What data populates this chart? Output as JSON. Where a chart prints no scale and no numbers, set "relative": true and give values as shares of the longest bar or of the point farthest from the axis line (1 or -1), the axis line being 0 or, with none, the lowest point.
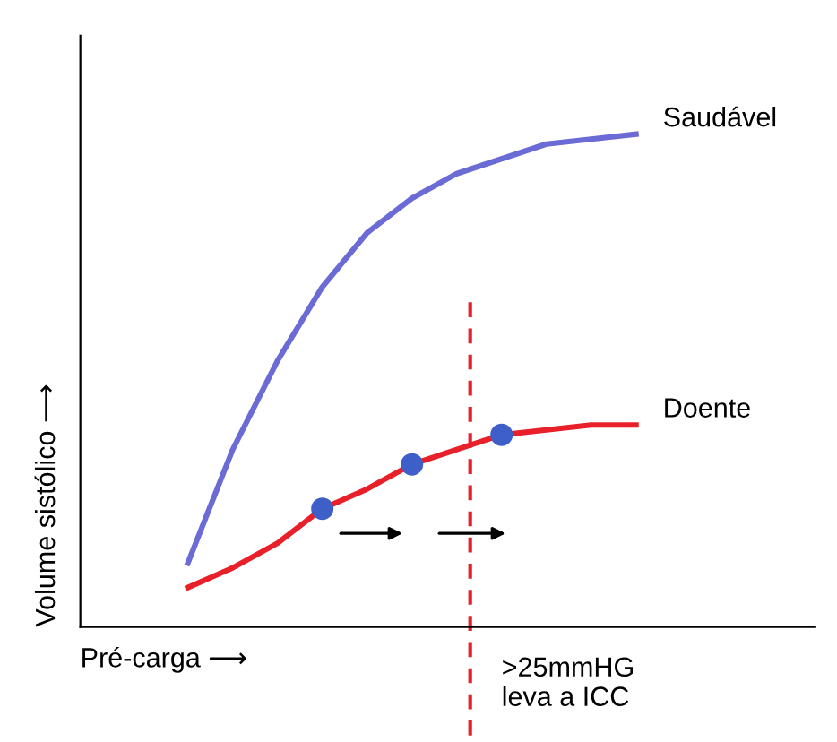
{
  "chart_data": {
    "type": "line",
    "relative": true,
    "xlabel": "Pré-carga ⟶",
    "ylabel": "Volume sistólico ⟶",
    "categories": [
      null,
      null,
      null,
      null,
      null,
      null,
      null,
      null,
      null,
      null,
      null
    ],
    "series": [
      {
        "name": "Saudável",
        "color": "#6b6bd6",
        "values": [
          0.13,
          0.36,
          0.54,
          0.69,
          0.8,
          0.87,
          0.92,
          0.95,
          0.98,
          0.99,
          1.0
        ]
      },
      {
        "name": "Doente",
        "color": "#e8202a",
        "values": [
          0.08,
          0.12,
          0.17,
          0.24,
          0.28,
          0.33,
          0.36,
          0.39,
          0.4,
          0.41,
          0.41
        ]
      }
    ],
    "annotations": [
      ">25mmHG\nleva a ICC"
    ]
  }
}
